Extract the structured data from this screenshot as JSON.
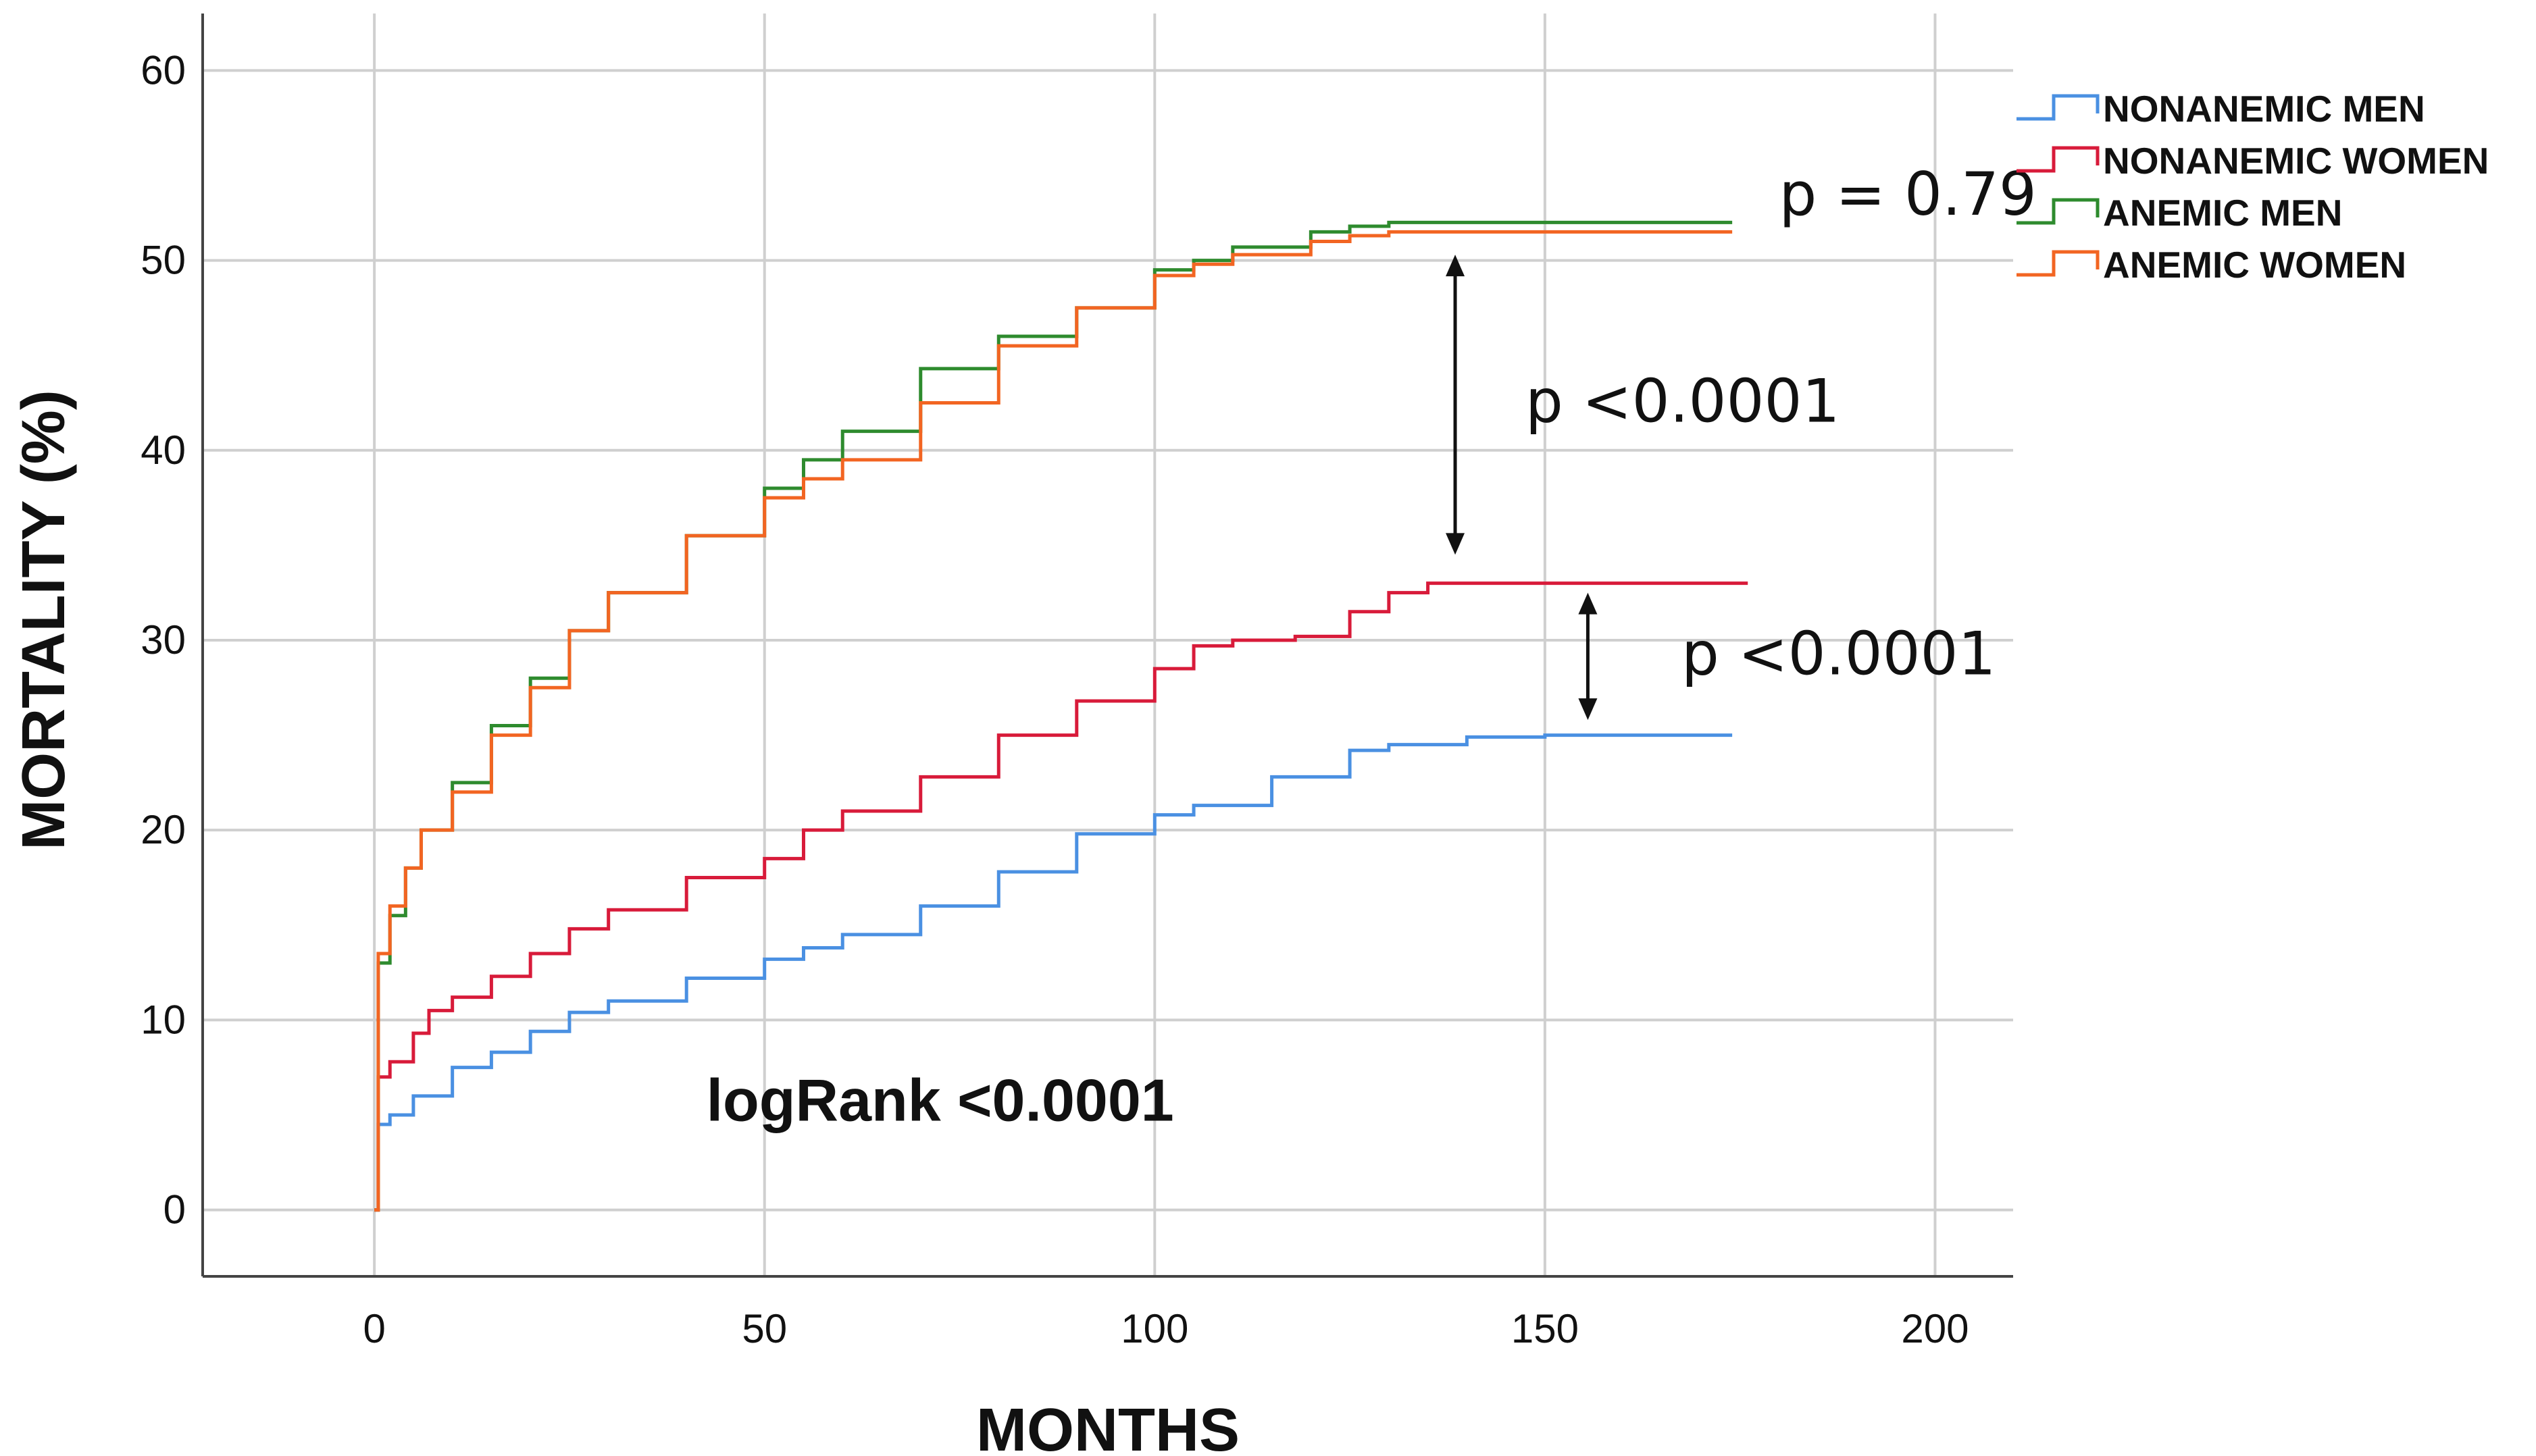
{
  "chart_data": {
    "type": "line",
    "xlabel": "MONTHS",
    "ylabel": "MORTALITY (%)",
    "xlim": [
      -22,
      210
    ],
    "ylim": [
      -3.5,
      63
    ],
    "xticks": [
      0,
      50,
      100,
      150,
      200
    ],
    "yticks": [
      0,
      10,
      20,
      30,
      40,
      50,
      60
    ],
    "grid": true,
    "legend_position": "top-right",
    "series": [
      {
        "name": "NONANEMIC MEN",
        "color": "#4a90e2",
        "x": [
          0,
          0.5,
          2,
          5,
          10,
          15,
          20,
          25,
          30,
          40,
          50,
          55,
          60,
          70,
          80,
          90,
          100,
          105,
          115,
          125,
          130,
          140,
          150,
          160,
          174
        ],
        "y": [
          0,
          4.5,
          5,
          6,
          7.5,
          8.3,
          9.4,
          10.4,
          11,
          12.2,
          13.2,
          13.8,
          14.5,
          16,
          17.8,
          19.8,
          20.8,
          21.3,
          22.8,
          24.2,
          24.5,
          24.9,
          25,
          25,
          25
        ]
      },
      {
        "name": "NONANEMIC WOMEN",
        "color": "#d81b3a",
        "x": [
          0,
          0.5,
          2,
          5,
          7,
          10,
          15,
          20,
          25,
          30,
          40,
          50,
          55,
          60,
          70,
          80,
          90,
          100,
          105,
          110,
          118,
          125,
          130,
          135,
          150,
          160,
          176
        ],
        "y": [
          0,
          7,
          7.8,
          9.3,
          10.5,
          11.2,
          12.3,
          13.5,
          14.8,
          15.8,
          17.5,
          18.5,
          20,
          21,
          22.8,
          25,
          26.8,
          28.5,
          29.7,
          30,
          30.2,
          31.5,
          32.5,
          33,
          33,
          33,
          33
        ]
      },
      {
        "name": "ANEMIC MEN",
        "color": "#2e8b2e",
        "x": [
          0,
          0.5,
          2,
          4,
          6,
          10,
          15,
          20,
          25,
          30,
          40,
          50,
          55,
          60,
          70,
          80,
          90,
          100,
          105,
          110,
          120,
          125,
          130,
          150,
          174
        ],
        "y": [
          0,
          13,
          15.5,
          18,
          20,
          22.5,
          25.5,
          28,
          30.5,
          32.5,
          35.5,
          38,
          39.5,
          41,
          44.3,
          46,
          47.5,
          49.5,
          50,
          50.7,
          51.5,
          51.8,
          52,
          52,
          52
        ]
      },
      {
        "name": "ANEMIC WOMEN",
        "color": "#f26522",
        "x": [
          0,
          0.5,
          2,
          4,
          6,
          10,
          15,
          20,
          25,
          30,
          40,
          50,
          55,
          60,
          70,
          80,
          90,
          100,
          105,
          110,
          120,
          125,
          130,
          150,
          174
        ],
        "y": [
          0,
          13.5,
          16,
          18,
          20,
          22,
          25,
          27.5,
          30.5,
          32.5,
          35.5,
          37.5,
          38.5,
          39.5,
          42.5,
          45.5,
          47.5,
          49.2,
          49.8,
          50.3,
          51,
          51.3,
          51.5,
          51.5,
          51.5
        ]
      }
    ],
    "annotations": [
      {
        "text": "p = 0.79",
        "x": 180,
        "y": 52.4
      },
      {
        "text": "p <0.0001",
        "x": 147.5,
        "y": 41.5
      },
      {
        "text": "p <0.0001",
        "x": 167.5,
        "y": 28.2
      },
      {
        "text": "logRank <0.0001",
        "x": 72.5,
        "y": 4.7
      }
    ],
    "arrows": [
      {
        "x": 138.5,
        "y_from": 50.3,
        "y_to": 34.5
      },
      {
        "x": 155.5,
        "y_from": 32.5,
        "y_to": 25.8
      }
    ]
  }
}
